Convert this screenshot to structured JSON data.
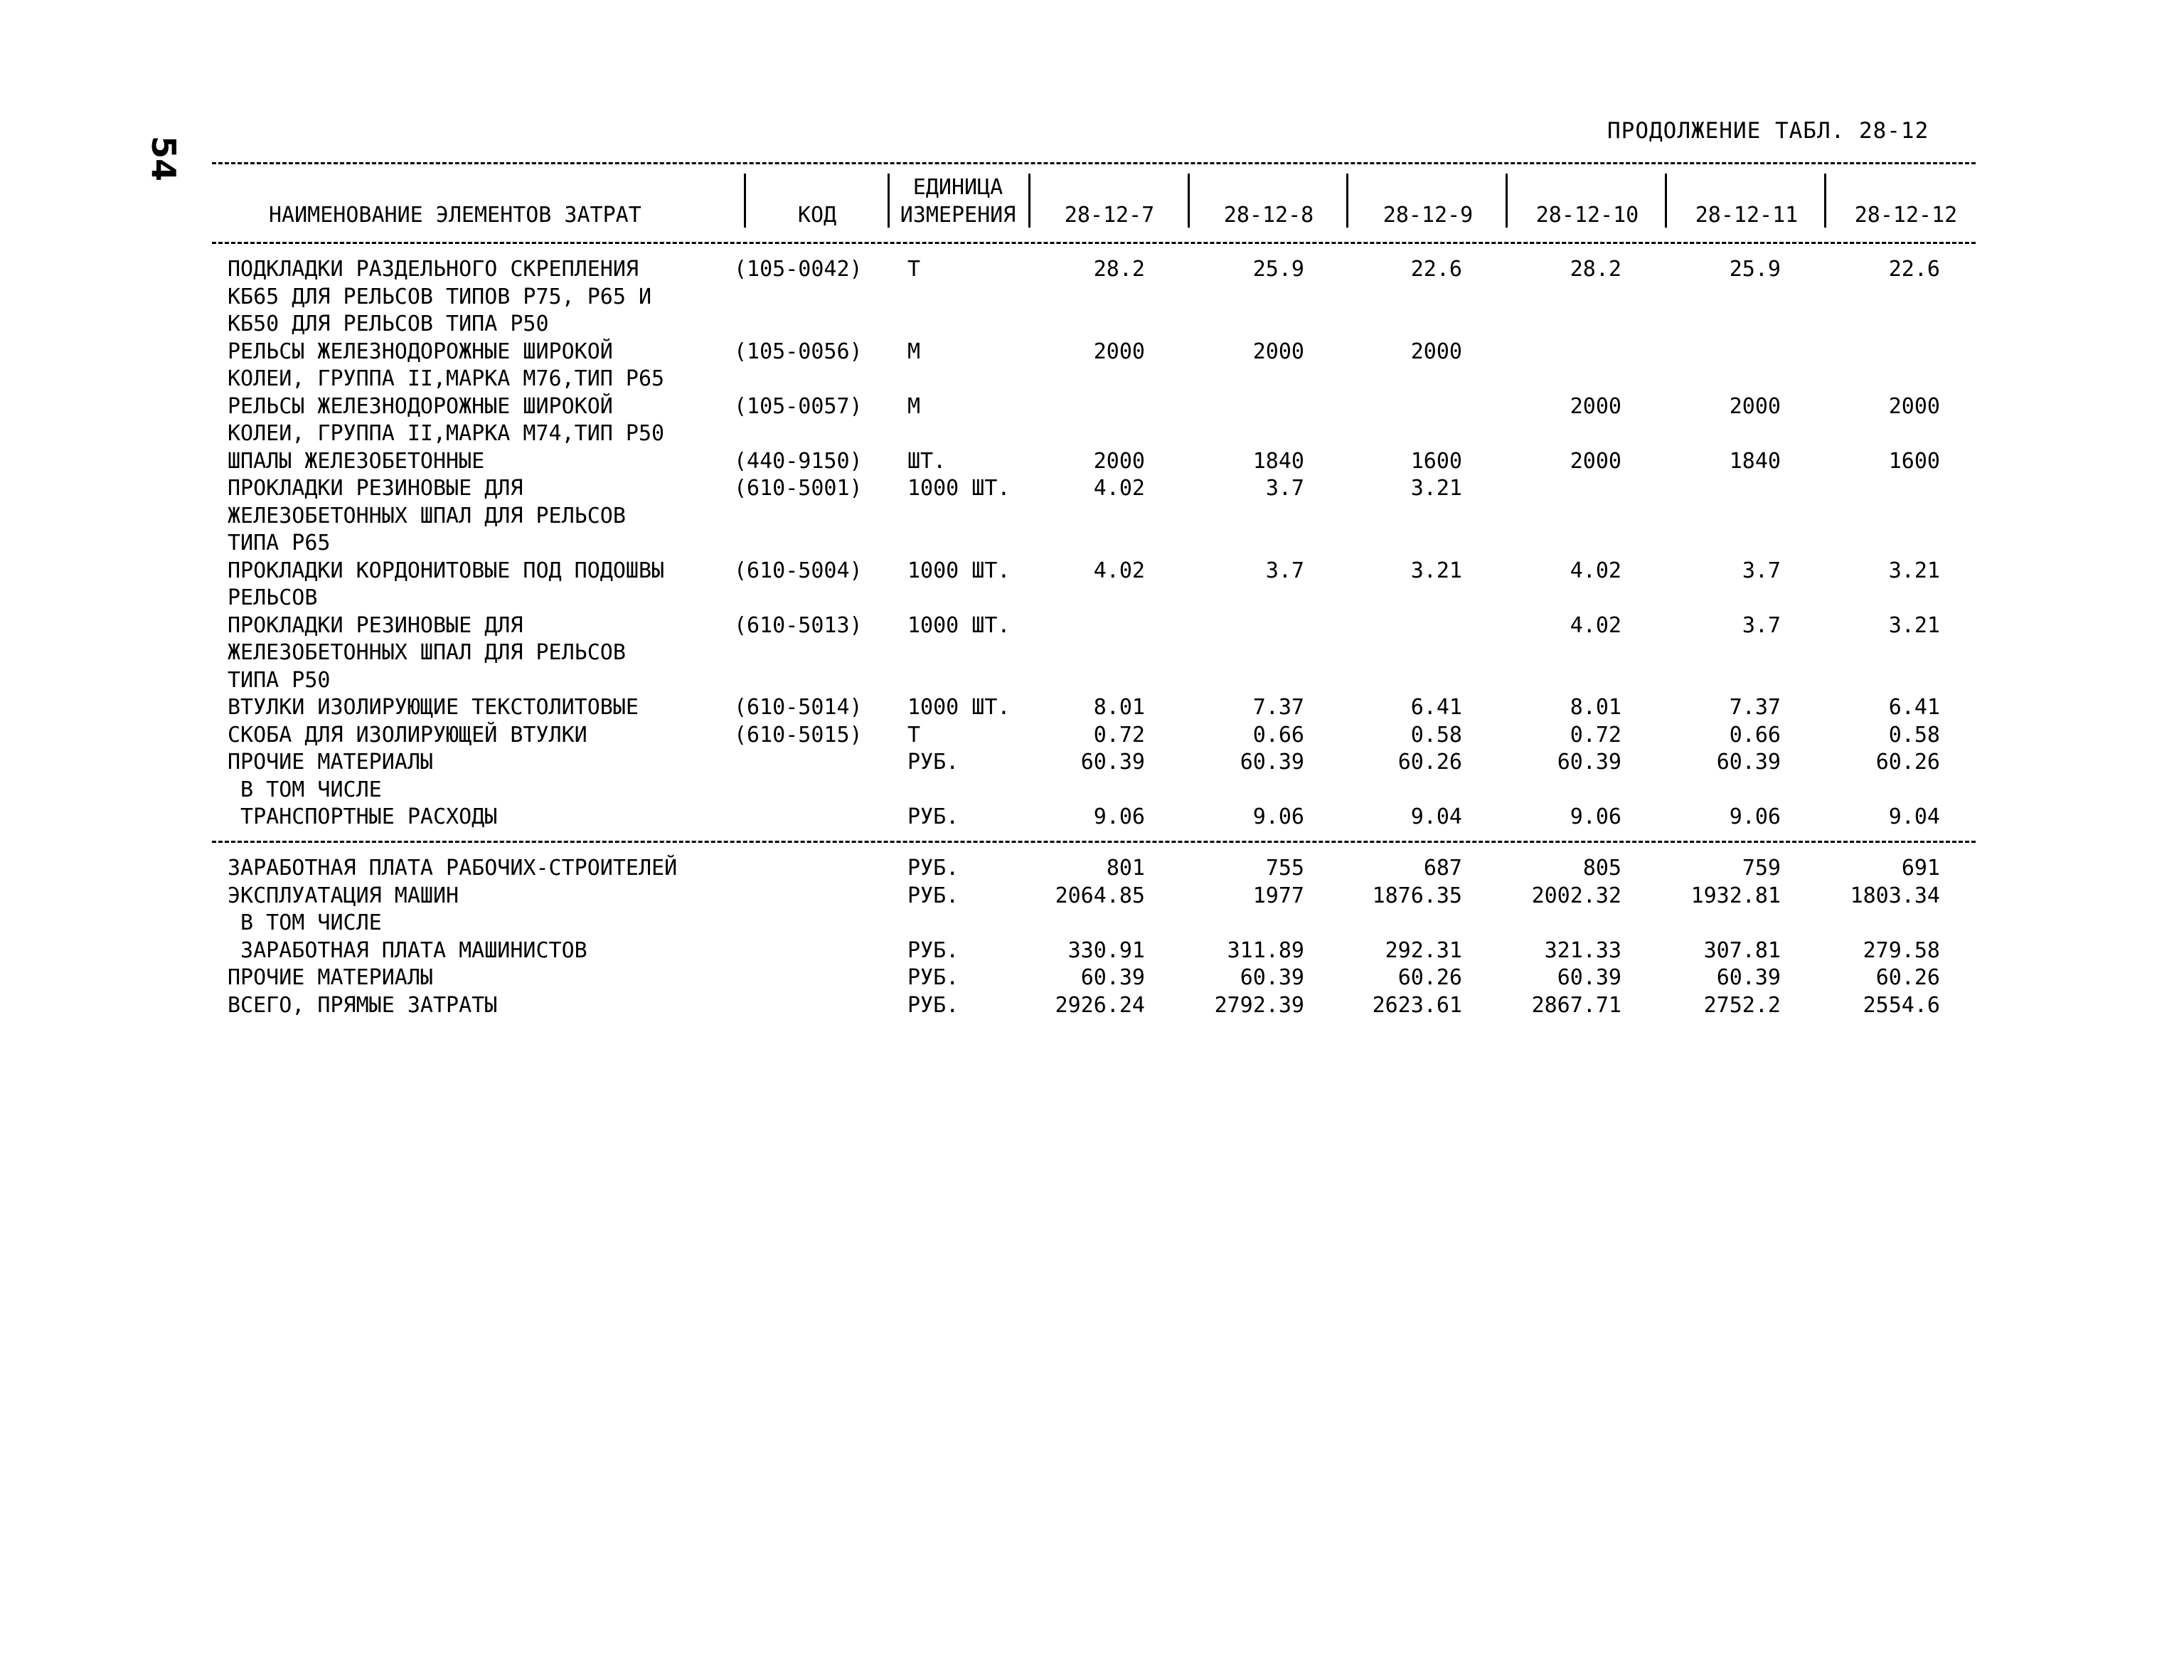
{
  "page_number": "54",
  "continuation_label": "ПРОДОЛЖЕНИЕ ТАБЛ. 28-12",
  "table": {
    "headers": {
      "name": "НАИМЕНОВАНИЕ ЭЛЕМЕНТОВ ЗАТРАТ",
      "code": "КОД",
      "unit_line1": "ЕДИНИЦА",
      "unit_line2": "ИЗМЕРЕНИЯ",
      "columns": [
        "28-12-7",
        "28-12-8",
        "28-12-9",
        "28-12-10",
        "28-12-11",
        "28-12-12"
      ]
    },
    "material_rows": [
      {
        "name_lines": [
          "ПОДКЛАДКИ РАЗДЕЛЬНОГО СКРЕПЛЕНИЯ",
          "КБ65 ДЛЯ РЕЛЬСОВ ТИПОВ Р75, Р65 И",
          "КБ50 ДЛЯ РЕЛЬСОВ ТИПА Р50"
        ],
        "code": "(105-0042)",
        "unit": "Т",
        "values": [
          "28.2",
          "25.9",
          "22.6",
          "28.2",
          "25.9",
          "22.6"
        ]
      },
      {
        "name_lines": [
          "РЕЛЬСЫ ЖЕЛЕЗНОДОРОЖНЫЕ ШИРОКОЙ",
          "КОЛЕИ, ГРУППА II,МАРКА М76,ТИП Р65"
        ],
        "code": "(105-0056)",
        "unit": "М",
        "values": [
          "2000",
          "2000",
          "2000",
          "",
          "",
          ""
        ]
      },
      {
        "name_lines": [
          "РЕЛЬСЫ ЖЕЛЕЗНОДОРОЖНЫЕ ШИРОКОЙ",
          "КОЛЕИ, ГРУППА II,МАРКА М74,ТИП Р50"
        ],
        "code": "(105-0057)",
        "unit": "М",
        "values": [
          "",
          "",
          "",
          "2000",
          "2000",
          "2000"
        ]
      },
      {
        "name_lines": [
          "ШПАЛЫ ЖЕЛЕЗОБЕТОННЫЕ"
        ],
        "code": "(440-9150)",
        "unit": "ШТ.",
        "values": [
          "2000",
          "1840",
          "1600",
          "2000",
          "1840",
          "1600"
        ]
      },
      {
        "name_lines": [
          "ПРОКЛАДКИ РЕЗИНОВЫЕ ДЛЯ",
          "ЖЕЛЕЗОБЕТОННЫХ ШПАЛ ДЛЯ РЕЛЬСОВ",
          "ТИПА Р65"
        ],
        "code": "(610-5001)",
        "unit": "1000 ШТ.",
        "values": [
          "4.02",
          "3.7",
          "3.21",
          "",
          "",
          ""
        ]
      },
      {
        "name_lines": [
          "ПРОКЛАДКИ КОРДОНИТОВЫЕ ПОД ПОДОШВЫ",
          "РЕЛЬСОВ"
        ],
        "code": "(610-5004)",
        "unit": "1000 ШТ.",
        "values": [
          "4.02",
          "3.7",
          "3.21",
          "4.02",
          "3.7",
          "3.21"
        ]
      },
      {
        "name_lines": [
          "ПРОКЛАДКИ РЕЗИНОВЫЕ ДЛЯ",
          "ЖЕЛЕЗОБЕТОННЫХ ШПАЛ ДЛЯ РЕЛЬСОВ",
          "ТИПА Р50"
        ],
        "code": "(610-5013)",
        "unit": "1000 ШТ.",
        "values": [
          "",
          "",
          "",
          "4.02",
          "3.7",
          "3.21"
        ]
      },
      {
        "name_lines": [
          "ВТУЛКИ ИЗОЛИРУЮЩИЕ ТЕКСТОЛИТОВЫЕ"
        ],
        "code": "(610-5014)",
        "unit": "1000 ШТ.",
        "values": [
          "8.01",
          "7.37",
          "6.41",
          "8.01",
          "7.37",
          "6.41"
        ]
      },
      {
        "name_lines": [
          "СКОБА ДЛЯ ИЗОЛИРУЮЩЕЙ ВТУЛКИ"
        ],
        "code": "(610-5015)",
        "unit": "Т",
        "values": [
          "0.72",
          "0.66",
          "0.58",
          "0.72",
          "0.66",
          "0.58"
        ]
      },
      {
        "name_lines": [
          "ПРОЧИЕ МАТЕРИАЛЫ",
          " В ТОМ ЧИСЛЕ"
        ],
        "code": "",
        "unit": "РУБ.",
        "values": [
          "60.39",
          "60.39",
          "60.26",
          "60.39",
          "60.39",
          "60.26"
        ]
      },
      {
        "name_lines": [
          " ТРАНСПОРТНЫЕ РАСХОДЫ"
        ],
        "code": "",
        "unit": "РУБ.",
        "values": [
          "9.06",
          "9.06",
          "9.04",
          "9.06",
          "9.06",
          "9.04"
        ]
      }
    ],
    "summary_rows": [
      {
        "name_lines": [
          "ЗАРАБОТНАЯ ПЛАТА РАБОЧИХ-СТРОИТЕЛЕЙ"
        ],
        "unit": "РУБ.",
        "values": [
          "801",
          "755",
          "687",
          "805",
          "759",
          "691"
        ]
      },
      {
        "name_lines": [
          "ЭКСПЛУАТАЦИЯ МАШИН",
          " В ТОМ ЧИСЛЕ"
        ],
        "unit": "РУБ.",
        "values": [
          "2064.85",
          "1977",
          "1876.35",
          "2002.32",
          "1932.81",
          "1803.34"
        ]
      },
      {
        "name_lines": [
          " ЗАРАБОТНАЯ ПЛАТА МАШИНИСТОВ"
        ],
        "unit": "РУБ.",
        "values": [
          "330.91",
          "311.89",
          "292.31",
          "321.33",
          "307.81",
          "279.58"
        ]
      },
      {
        "name_lines": [
          "ПРОЧИЕ МАТЕРИАЛЫ"
        ],
        "unit": "РУБ.",
        "values": [
          "60.39",
          "60.39",
          "60.26",
          "60.39",
          "60.39",
          "60.26"
        ]
      },
      {
        "name_lines": [
          "ВСЕГО, ПРЯМЫЕ ЗАТРАТЫ"
        ],
        "unit": "РУБ.",
        "values": [
          "2926.24",
          "2792.39",
          "2623.61",
          "2867.71",
          "2752.2",
          "2554.6"
        ]
      }
    ]
  }
}
